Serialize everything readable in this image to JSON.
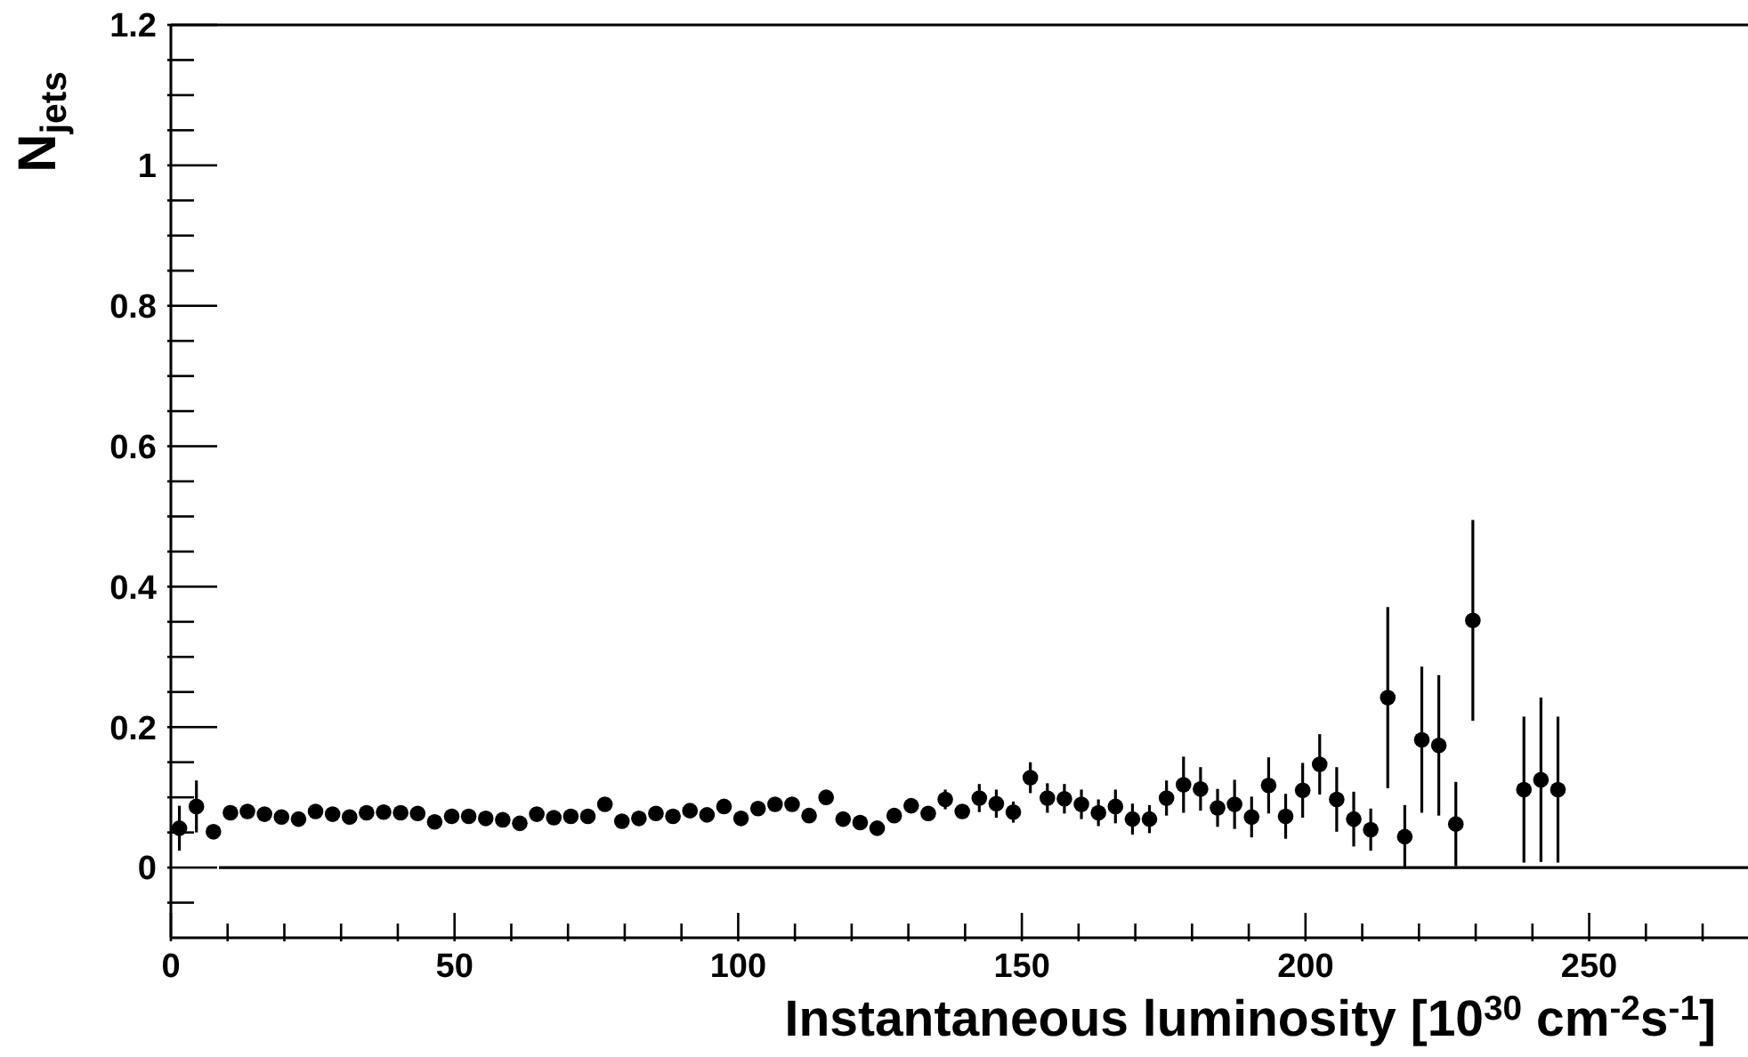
{
  "chart_data": {
    "type": "scatter",
    "xlabel": "Instantaneous luminosity [10$^{30}$ cm$^{-2}$s$^{-1}$]",
    "ylabel": "N$_{jets}$",
    "x": [
      1.5,
      4.5,
      7.5,
      10.5,
      13.5,
      16.5,
      19.5,
      22.5,
      25.5,
      28.5,
      31.5,
      34.5,
      37.5,
      40.5,
      43.5,
      46.5,
      49.5,
      52.5,
      55.5,
      58.5,
      61.5,
      64.5,
      67.5,
      70.5,
      73.5,
      76.5,
      79.5,
      82.5,
      85.5,
      88.5,
      91.5,
      94.5,
      97.5,
      100.5,
      103.5,
      106.5,
      109.5,
      112.5,
      115.5,
      118.5,
      121.5,
      124.5,
      127.5,
      130.5,
      133.5,
      136.5,
      139.5,
      142.5,
      145.5,
      148.5,
      151.5,
      154.5,
      157.5,
      160.5,
      163.5,
      166.5,
      169.5,
      172.5,
      175.5,
      178.5,
      181.5,
      184.5,
      187.5,
      190.5,
      193.5,
      196.5,
      199.5,
      202.5,
      205.5,
      208.5,
      211.5,
      214.5,
      217.5,
      220.5,
      223.5,
      226.5,
      229.5,
      238.5,
      241.5,
      244.5
    ],
    "series": [
      {
        "color": "#000000",
        "values": [
          0.056,
          0.087,
          0.051,
          0.078,
          0.08,
          0.076,
          0.072,
          0.069,
          0.08,
          0.076,
          0.072,
          0.078,
          0.079,
          0.078,
          0.077,
          0.065,
          0.073,
          0.073,
          0.07,
          0.068,
          0.063,
          0.076,
          0.071,
          0.073,
          0.073,
          0.09,
          0.066,
          0.07,
          0.077,
          0.073,
          0.081,
          0.075,
          0.087,
          0.07,
          0.084,
          0.09,
          0.09,
          0.074,
          0.1,
          0.069,
          0.064,
          0.056,
          0.074,
          0.088,
          0.077,
          0.097,
          0.08,
          0.099,
          0.091,
          0.079,
          0.128,
          0.099,
          0.098,
          0.09,
          0.078,
          0.087,
          0.069,
          0.069,
          0.099,
          0.118,
          0.112,
          0.085,
          0.09,
          0.072,
          0.117,
          0.073,
          0.11,
          0.147,
          0.097,
          0.069,
          0.054,
          0.242,
          0.044,
          0.182,
          0.174,
          0.062,
          0.352,
          0.111,
          0.125,
          0.111
        ],
        "errors": [
          0.032,
          0.037,
          null,
          null,
          null,
          null,
          null,
          null,
          null,
          null,
          null,
          null,
          null,
          null,
          null,
          null,
          null,
          null,
          null,
          null,
          null,
          null,
          null,
          null,
          null,
          null,
          null,
          null,
          null,
          null,
          null,
          null,
          null,
          null,
          null,
          null,
          null,
          null,
          null,
          null,
          null,
          null,
          null,
          null,
          null,
          0.014,
          null,
          0.02,
          0.02,
          0.015,
          0.022,
          0.021,
          0.021,
          0.021,
          0.019,
          0.024,
          0.022,
          0.02,
          0.025,
          0.04,
          0.031,
          0.027,
          0.035,
          0.029,
          0.04,
          0.032,
          0.039,
          0.043,
          0.046,
          0.039,
          0.03,
          0.129,
          0.045,
          0.104,
          0.1,
          0.06,
          0.143,
          0.104,
          0.117,
          0.104
        ]
      }
    ],
    "xlim": [
      0,
      278
    ],
    "ylim": [
      -0.1,
      1.2
    ],
    "xticks": [
      0,
      {
        "value": 10,
        "label": null
      },
      {
        "value": 20,
        "label": null
      },
      {
        "value": 30,
        "label": null
      },
      {
        "value": 40,
        "label": null
      },
      50,
      {
        "value": 60,
        "label": null
      },
      {
        "value": 70,
        "label": null
      },
      {
        "value": 80,
        "label": null
      },
      {
        "value": 90,
        "label": null
      },
      100,
      {
        "value": 110,
        "label": null
      },
      {
        "value": 120,
        "label": null
      },
      {
        "value": 130,
        "label": null
      },
      {
        "value": 140,
        "label": null
      },
      150,
      {
        "value": 160,
        "label": null
      },
      {
        "value": 170,
        "label": null
      },
      {
        "value": 180,
        "label": null
      },
      {
        "value": 190,
        "label": null
      },
      200,
      {
        "value": 210,
        "label": null
      },
      {
        "value": 220,
        "label": null
      },
      {
        "value": 230,
        "label": null
      },
      {
        "value": 240,
        "label": null
      },
      250,
      {
        "value": 260,
        "label": null
      },
      {
        "value": 270,
        "label": null
      }
    ],
    "yticks": [
      {
        "value": -0.05,
        "label": null
      },
      0,
      {
        "value": 0.05,
        "label": null
      },
      {
        "value": 0.1,
        "label": null
      },
      {
        "value": 0.15,
        "label": null
      },
      0.2,
      {
        "value": 0.25,
        "label": null
      },
      {
        "value": 0.3,
        "label": null
      },
      {
        "value": 0.35,
        "label": null
      },
      0.4,
      {
        "value": 0.45,
        "label": null
      },
      {
        "value": 0.5,
        "label": null
      },
      {
        "value": 0.55,
        "label": null
      },
      0.6,
      {
        "value": 0.65,
        "label": null
      },
      {
        "value": 0.7,
        "label": null
      },
      {
        "value": 0.75,
        "label": null
      },
      0.8,
      {
        "value": 0.85,
        "label": null
      },
      {
        "value": 0.9,
        "label": null
      },
      {
        "value": 0.95,
        "label": null
      },
      1,
      {
        "value": 1.05,
        "label": null
      },
      {
        "value": 1.1,
        "label": null
      },
      {
        "value": 1.15,
        "label": null
      },
      1.2
    ],
    "ref_lines": [
      {
        "axis": "y",
        "value": 0
      }
    ],
    "marker": "circle"
  }
}
